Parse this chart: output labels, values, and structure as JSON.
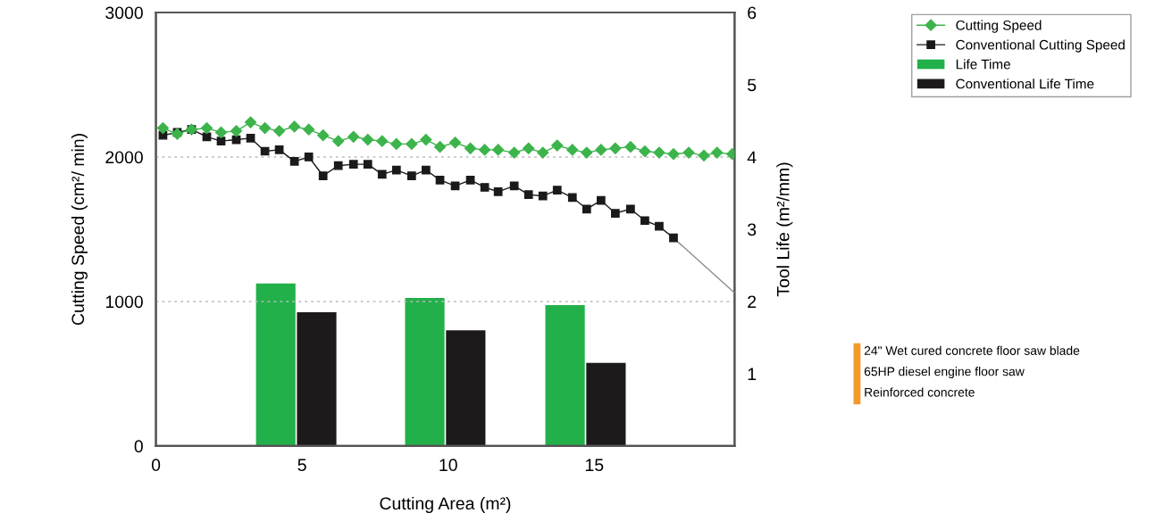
{
  "chart_data": {
    "type": "line",
    "xlabel": "Cutting Area (m²)",
    "ylabel": "Cutting Speed (cm²/ min)",
    "y2label": "Tool Life (m²/mm)",
    "xlim": [
      0,
      19.8
    ],
    "xticks": [
      0,
      5,
      10,
      15
    ],
    "ylim": [
      0,
      3000
    ],
    "yticks": [
      0,
      1000,
      2000,
      3000
    ],
    "y2lim": [
      0,
      6
    ],
    "y2ticks": [
      1,
      2,
      3,
      4,
      5,
      6
    ],
    "grid": "y",
    "legend": "top right",
    "series": [
      {
        "name": "Cutting Speed",
        "marker": "diamond",
        "color": "#3cb44b",
        "x": [
          0.24,
          0.73,
          1.22,
          1.74,
          2.23,
          2.75,
          3.24,
          3.73,
          4.22,
          4.74,
          5.23,
          5.72,
          6.24,
          6.76,
          7.25,
          7.74,
          8.23,
          8.75,
          9.24,
          9.72,
          10.24,
          10.76,
          11.25,
          11.71,
          12.26,
          12.75,
          13.24,
          13.73,
          14.25,
          14.74,
          15.23,
          15.72,
          16.24,
          16.73,
          17.22,
          17.71,
          18.23,
          18.75,
          19.2,
          19.72
        ],
        "values": [
          2200,
          2160,
          2190,
          2200,
          2170,
          2180,
          2240,
          2200,
          2180,
          2210,
          2190,
          2150,
          2110,
          2140,
          2120,
          2110,
          2090,
          2090,
          2120,
          2070,
          2100,
          2060,
          2050,
          2050,
          2030,
          2060,
          2030,
          2080,
          2050,
          2030,
          2050,
          2060,
          2070,
          2040,
          2030,
          2020,
          2030,
          2010,
          2030,
          2020
        ]
      },
      {
        "name": "Conventional Cutting Speed",
        "marker": "square",
        "color": "#1a1a1a",
        "x": [
          0.24,
          0.73,
          1.22,
          1.74,
          2.23,
          2.75,
          3.24,
          3.73,
          4.22,
          4.74,
          5.23,
          5.72,
          6.24,
          6.76,
          7.25,
          7.74,
          8.23,
          8.75,
          9.24,
          9.72,
          10.24,
          10.76,
          11.25,
          11.71,
          12.26,
          12.75,
          13.24,
          13.73,
          14.25,
          14.74,
          15.23,
          15.72,
          16.24,
          16.73,
          17.22,
          17.71
        ],
        "values": [
          2150,
          2170,
          2190,
          2140,
          2110,
          2120,
          2130,
          2040,
          2050,
          1970,
          2000,
          1870,
          1940,
          1950,
          1950,
          1880,
          1910,
          1870,
          1910,
          1840,
          1800,
          1840,
          1790,
          1760,
          1800,
          1740,
          1730,
          1770,
          1720,
          1640,
          1700,
          1610,
          1640,
          1560,
          1520,
          1440
        ]
      },
      {
        "marker": "none",
        "color": "#8a8a8a",
        "x": [
          17.71,
          19.8
        ],
        "values": [
          1440,
          1060
        ]
      },
      {
        "name": "Life Time",
        "type": "bar",
        "axis": "y2",
        "color": "#22b04a",
        "x": [
          4.1,
          9.2,
          14.0
        ],
        "values": [
          2.25,
          2.05,
          1.95
        ]
      },
      {
        "name": "Conventional Life Time",
        "type": "bar",
        "axis": "y2",
        "color": "#1c1a1b",
        "x": [
          5.5,
          10.6,
          15.4
        ],
        "values": [
          1.85,
          1.6,
          1.15
        ]
      }
    ],
    "annotations": [
      "24\" Wet cured concrete floor saw blade",
      "65HP diesel engine floor saw",
      "Reinforced concrete"
    ]
  }
}
